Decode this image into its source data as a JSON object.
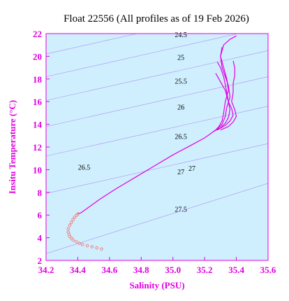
{
  "chart_data": {
    "type": "line",
    "title": "Float 22556  (All profiles as of 19 Feb 2026)",
    "xlabel": "Salinity (PSU)",
    "ylabel": "Insitu Temperature (°C)",
    "xlim": [
      34.2,
      35.6
    ],
    "ylim": [
      2,
      22
    ],
    "x_ticks": [
      "34.2",
      "34.4",
      "34.6",
      "34.8",
      "35.0",
      "35.2",
      "35.4",
      "35.6"
    ],
    "y_ticks": [
      "2",
      "4",
      "6",
      "8",
      "10",
      "12",
      "14",
      "16",
      "18",
      "20",
      "22"
    ],
    "plot_background": "#cfefff",
    "series_color": "#e000e0",
    "deep_marker_color": "#f08080",
    "density_contours": [
      {
        "label": "24.5",
        "y_at_left": 20.2,
        "y_at_right": 24.6,
        "label_x": 35.05,
        "label_y": 21.7
      },
      {
        "label": "25",
        "y_at_left": 18.2,
        "y_at_right": 22.6,
        "label_x": 35.05,
        "label_y": 19.7
      },
      {
        "label": "25.5",
        "y_at_left": 16.1,
        "y_at_right": 20.5,
        "label_x": 35.05,
        "label_y": 17.6
      },
      {
        "label": "26",
        "y_at_left": 13.8,
        "y_at_right": 18.2,
        "label_x": 35.05,
        "label_y": 15.3
      },
      {
        "label": "26.5",
        "y_at_left": 11.2,
        "y_at_right": 15.6,
        "label_x": 35.05,
        "label_y": 12.7
      },
      {
        "label": "26.5",
        "y_at_left": 11.2,
        "y_at_right": 15.6,
        "label_x": 34.44,
        "label_y": 10.0
      },
      {
        "label": "27",
        "y_at_left": 7.9,
        "y_at_right": 12.3,
        "label_x": 35.05,
        "label_y": 9.6
      },
      {
        "label": "27",
        "y_at_left": 7.9,
        "y_at_right": 12.3,
        "label_x": 35.12,
        "label_y": 9.9
      },
      {
        "label": "27.5",
        "y_at_left": 2.6,
        "y_at_right": 8.8,
        "label_x": 35.05,
        "label_y": 6.3
      }
    ],
    "series": [
      {
        "x": [
          35.4,
          35.36,
          35.32,
          35.3,
          35.32,
          35.34,
          35.35,
          35.33,
          35.32,
          35.31,
          35.29,
          35.27,
          35.24,
          35.2,
          35.12,
          35.0,
          34.88,
          34.76,
          34.64,
          34.54,
          34.46,
          34.42,
          34.4
        ],
        "y": [
          21.8,
          21.5,
          21.0,
          20.0,
          19.0,
          18.0,
          17.0,
          16.0,
          15.0,
          14.3,
          13.8,
          13.5,
          13.2,
          12.8,
          12.2,
          11.3,
          10.3,
          9.3,
          8.3,
          7.4,
          6.6,
          6.2,
          6.1
        ]
      },
      {
        "x": [
          35.31,
          35.3,
          35.31,
          35.33,
          35.35,
          35.36,
          35.34,
          35.33,
          35.31,
          35.28,
          35.25
        ],
        "y": [
          20.8,
          20.0,
          19.0,
          18.2,
          17.4,
          16.4,
          15.5,
          14.7,
          14.0,
          13.6,
          13.3
        ]
      },
      {
        "x": [
          35.28,
          35.3,
          35.32,
          35.33,
          35.34,
          35.35,
          35.36,
          35.35,
          35.33,
          35.3,
          35.26
        ],
        "y": [
          19.5,
          19.0,
          18.2,
          17.5,
          16.8,
          16.0,
          15.3,
          14.6,
          14.1,
          13.7,
          13.4
        ]
      },
      {
        "x": [
          35.27,
          35.29,
          35.31,
          35.33,
          35.34,
          35.35,
          35.37,
          35.38,
          35.36,
          35.33,
          35.28
        ],
        "y": [
          18.5,
          18.0,
          17.5,
          17.0,
          16.5,
          16.0,
          15.4,
          14.8,
          14.3,
          13.9,
          13.5
        ]
      },
      {
        "x": [
          35.38,
          35.39,
          35.39,
          35.38,
          35.38,
          35.37,
          35.39,
          35.4,
          35.38,
          35.35,
          35.3
        ],
        "y": [
          19.6,
          19.0,
          18.3,
          17.6,
          16.8,
          16.0,
          15.3,
          14.7,
          14.2,
          13.8,
          13.5
        ]
      }
    ],
    "deep_points": {
      "x": [
        34.4,
        34.39,
        34.38,
        34.37,
        34.36,
        34.35,
        34.34,
        34.34,
        34.345,
        34.35,
        34.36,
        34.37,
        34.39,
        34.41,
        34.43,
        34.46,
        34.49,
        34.52,
        34.55
      ],
      "y": [
        6.1,
        5.95,
        5.8,
        5.6,
        5.35,
        5.1,
        4.8,
        4.5,
        4.3,
        4.1,
        3.95,
        3.8,
        3.65,
        3.5,
        3.4,
        3.3,
        3.2,
        3.1,
        3.0
      ]
    }
  }
}
